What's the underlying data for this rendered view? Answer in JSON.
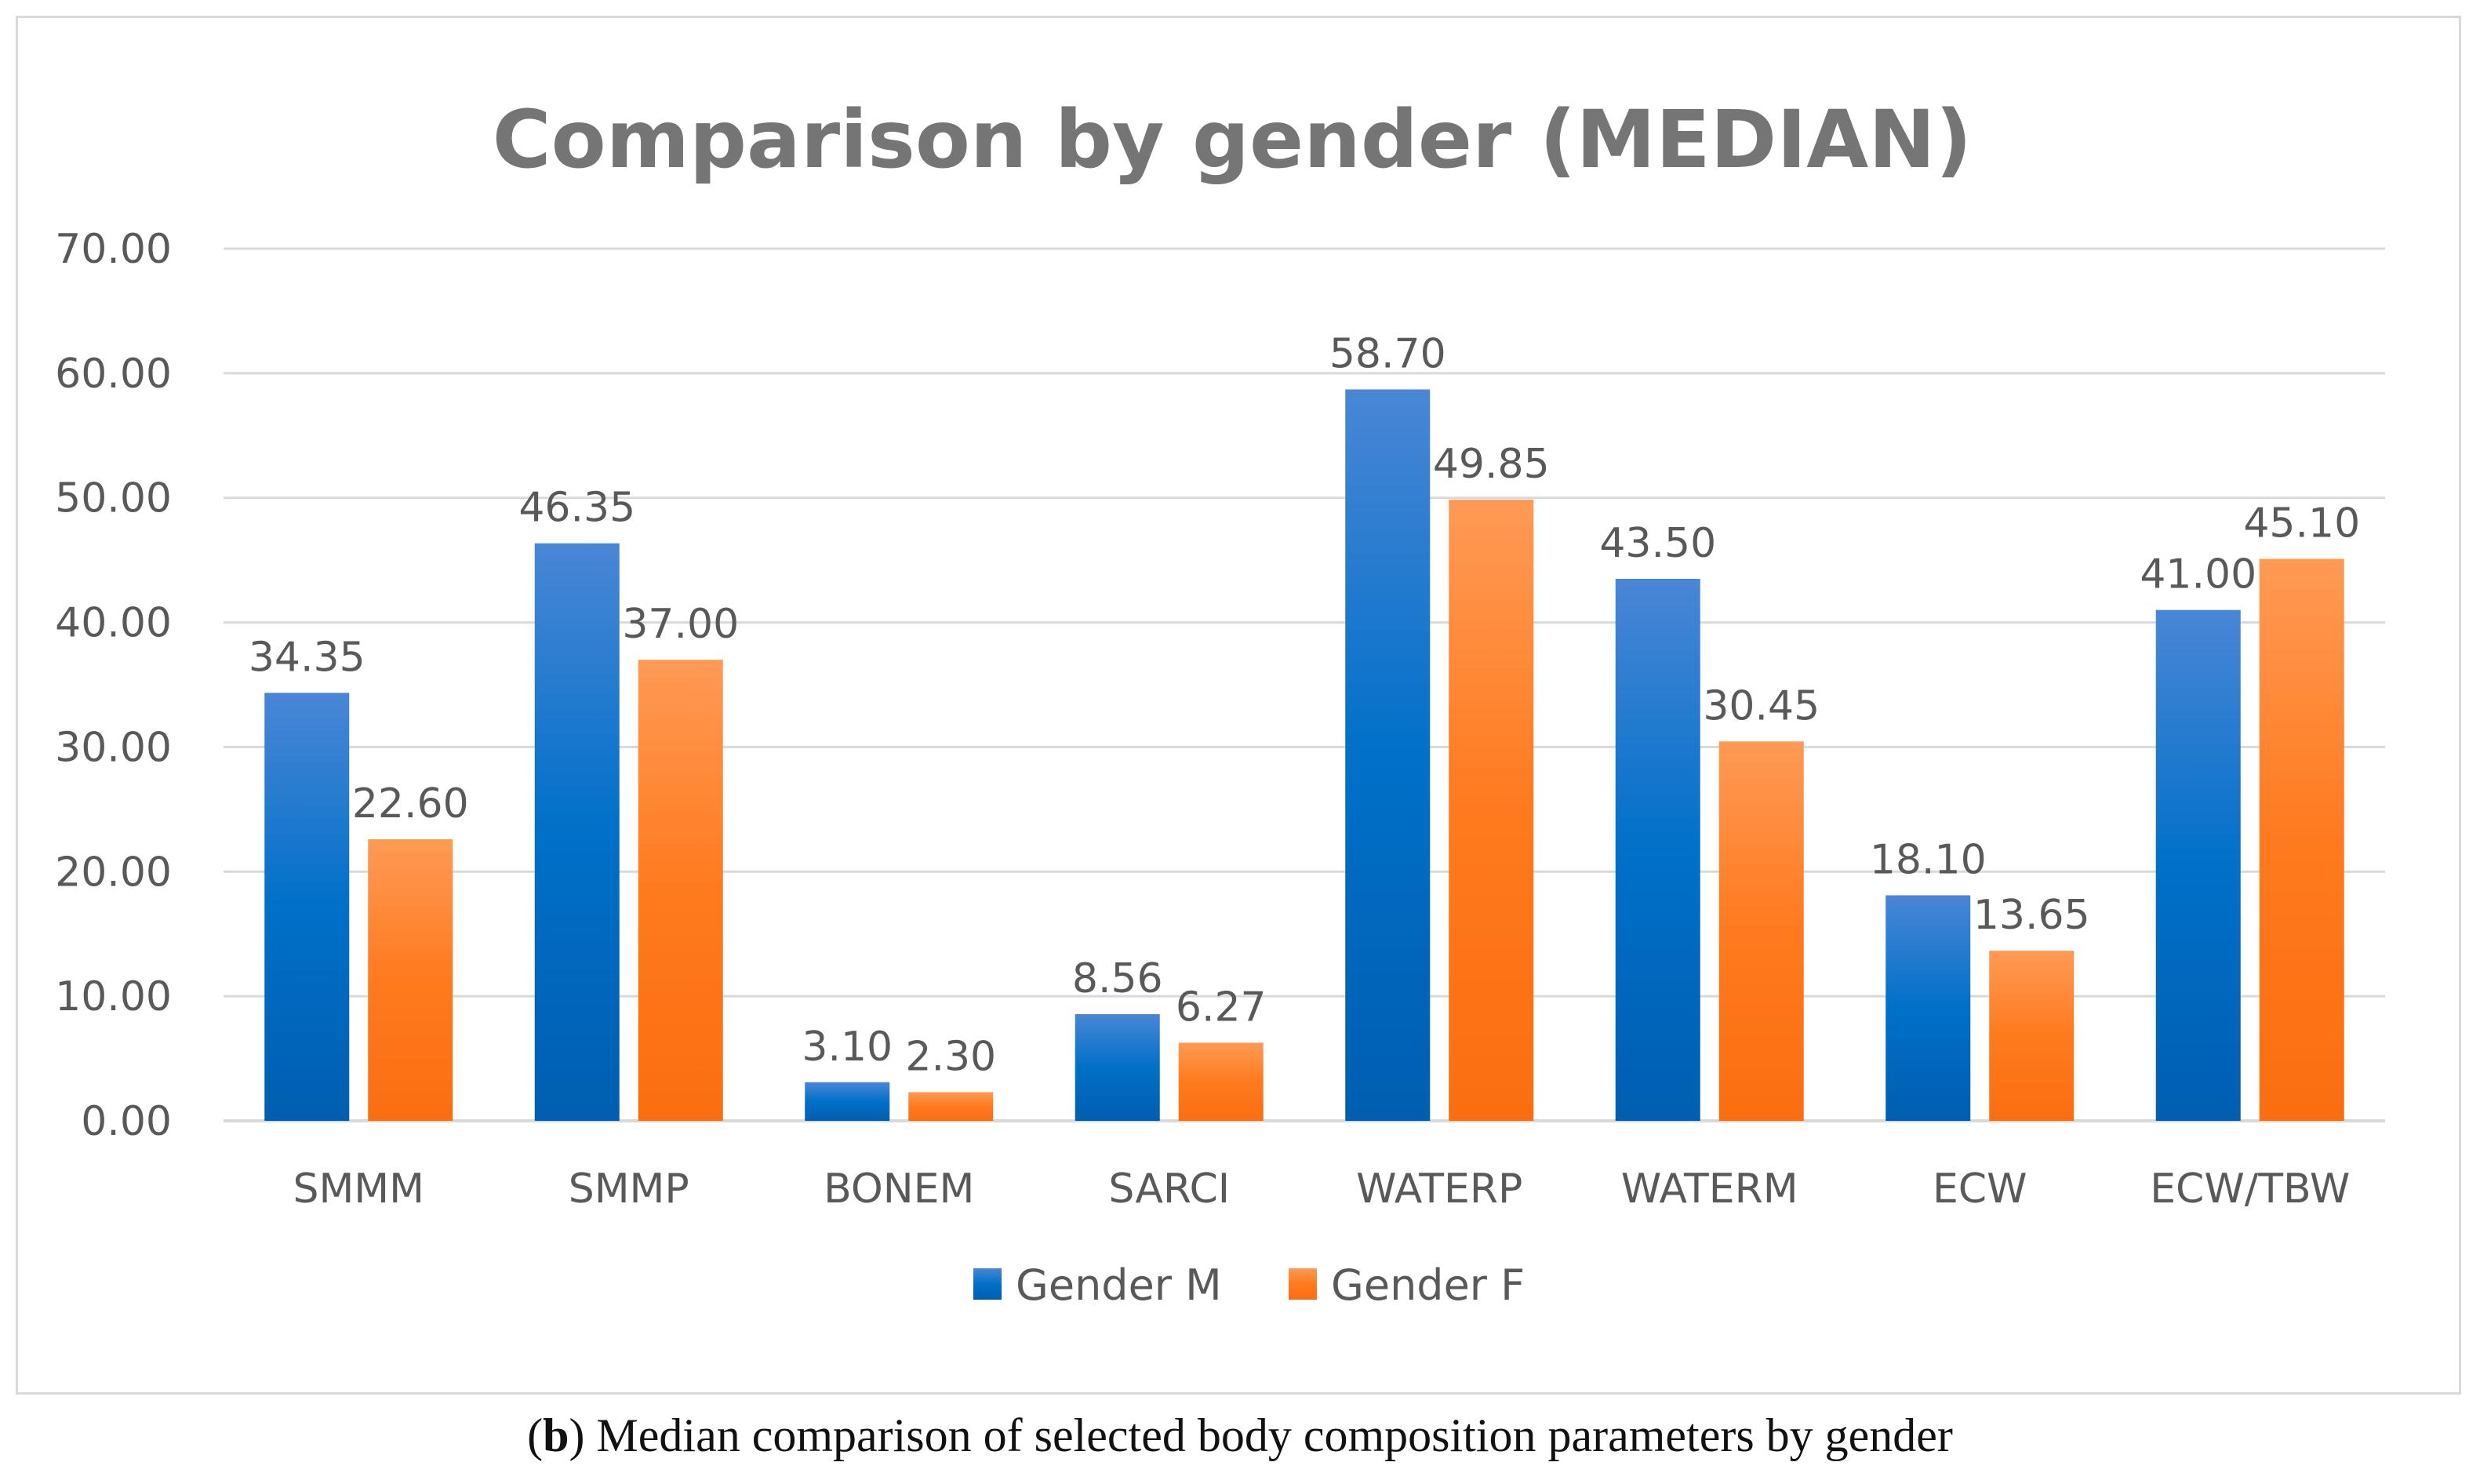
{
  "chart_data": {
    "type": "bar",
    "title": "Comparison by gender (MEDIAN)",
    "categories": [
      "SMMM",
      "SMMP",
      "BONEM",
      "SARCI",
      "WATERP",
      "WATERM",
      "ECW",
      "ECW/TBW"
    ],
    "series": [
      {
        "name": "Gender M",
        "color": "#0070C0",
        "values": [
          34.35,
          46.35,
          3.1,
          8.56,
          58.7,
          43.5,
          18.1,
          41.0
        ],
        "labels": [
          "34.35",
          "46.35",
          "3.10",
          "8.56",
          "58.70",
          "43.50",
          "18.10",
          "41.00"
        ]
      },
      {
        "name": "Gender F",
        "color": "#FF7F27",
        "values": [
          22.6,
          37.0,
          2.3,
          6.27,
          49.85,
          30.45,
          13.65,
          45.1
        ],
        "labels": [
          "22.60",
          "37.00",
          "2.30",
          "6.27",
          "49.85",
          "30.45",
          "13.65",
          "45.10"
        ]
      }
    ],
    "ylim": [
      0,
      70
    ],
    "yticks": [
      "0.00",
      "10.00",
      "20.00",
      "30.00",
      "40.00",
      "50.00",
      "60.00",
      "70.00"
    ],
    "grid": true,
    "legend": "bottom",
    "xlabel": "",
    "ylabel": ""
  },
  "caption": {
    "panel_letter": "b",
    "text": "Median comparison of selected body composition parameters by gender"
  }
}
